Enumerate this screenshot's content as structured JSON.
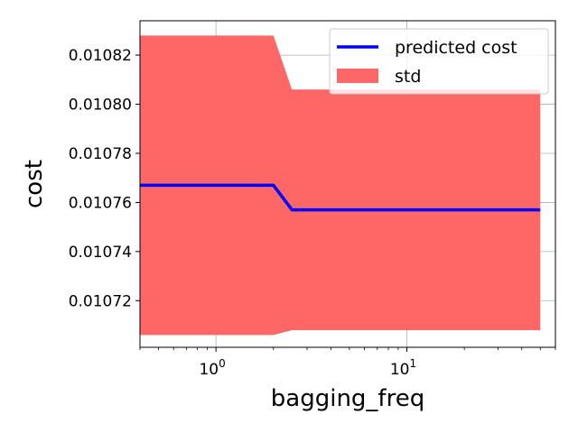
{
  "chart_data": {
    "type": "line",
    "xlabel": "bagging_freq",
    "ylabel": "cost",
    "x_scale": "log",
    "xlim": [
      0.4,
      60
    ],
    "ylim": [
      0.010701,
      0.010834
    ],
    "x_ticks": [
      {
        "value": 1,
        "base": "10",
        "exp": "0"
      },
      {
        "value": 10,
        "base": "10",
        "exp": "1"
      }
    ],
    "y_ticks": [
      {
        "value": 0.01072,
        "label": "0.01072"
      },
      {
        "value": 0.01074,
        "label": "0.01074"
      },
      {
        "value": 0.01076,
        "label": "0.01076"
      },
      {
        "value": 0.01078,
        "label": "0.01078"
      },
      {
        "value": 0.0108,
        "label": "0.01080"
      },
      {
        "value": 0.01082,
        "label": "0.01082"
      }
    ],
    "grid": true,
    "legend_position": "top-right",
    "series": [
      {
        "name": "predicted cost",
        "kind": "line",
        "color": "#0000ff",
        "x": [
          0.4,
          2,
          2.5,
          50
        ],
        "y": [
          0.010767,
          0.010767,
          0.010757,
          0.010757
        ]
      },
      {
        "name": "std",
        "kind": "band",
        "color": "#ff6666",
        "x": [
          0.4,
          2,
          2.5,
          50
        ],
        "lower": [
          0.010706,
          0.010706,
          0.010708,
          0.010708
        ],
        "upper": [
          0.010828,
          0.010828,
          0.010806,
          0.010806
        ]
      }
    ]
  }
}
